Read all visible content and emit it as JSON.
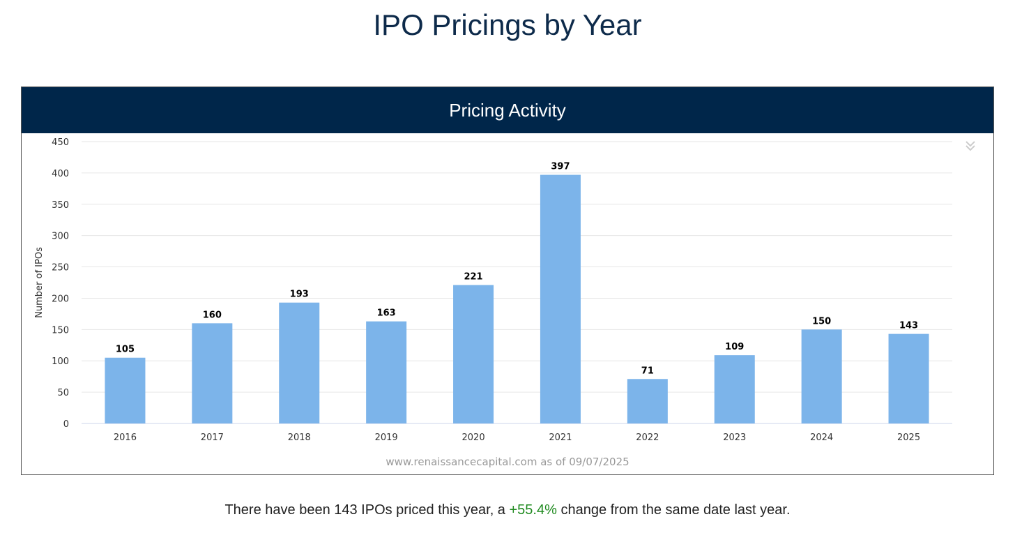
{
  "page_title": "IPO Pricings by Year",
  "panel_title": "Pricing Activity",
  "summary": {
    "before": "There have been 143 IPOs priced this year, a ",
    "change": "+55.4%",
    "after": " change from the same date last year."
  },
  "colors": {
    "bar": "#7cb4ea",
    "header": "#00264a",
    "positive": "#1f8a1f"
  },
  "chart_data": {
    "type": "bar",
    "title": "Pricing Activity",
    "categories": [
      "2016",
      "2017",
      "2018",
      "2019",
      "2020",
      "2021",
      "2022",
      "2023",
      "2024",
      "2025"
    ],
    "values": [
      105,
      160,
      193,
      163,
      221,
      397,
      71,
      109,
      150,
      143
    ],
    "xlabel": "",
    "ylabel": "Number of IPOs",
    "ylim": [
      0,
      450
    ],
    "yticks": [
      0,
      50,
      100,
      150,
      200,
      250,
      300,
      350,
      400,
      450
    ],
    "grid": true,
    "credit": "www.renaissancecapital.com as of 09/07/2025",
    "data_labels": true
  }
}
